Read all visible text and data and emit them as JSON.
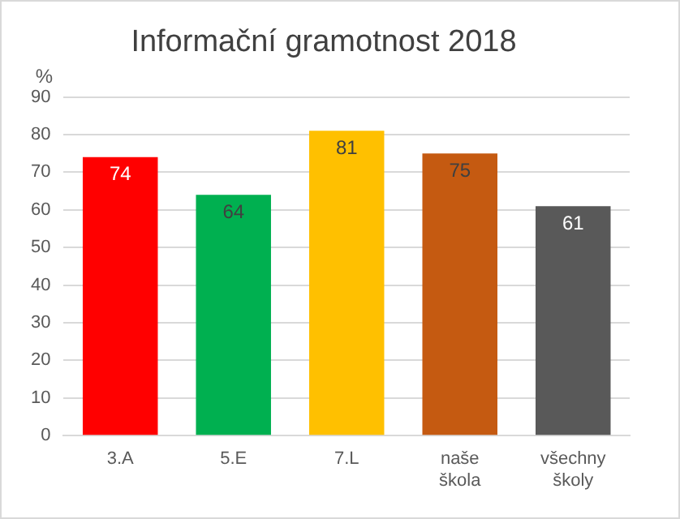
{
  "chart_data": {
    "type": "bar",
    "title": "Informační gramotnost 2018",
    "ylabel": "%",
    "categories": [
      "3.A",
      "5.E",
      "7.L",
      "naše škola",
      "všechny školy"
    ],
    "values": [
      74,
      64,
      81,
      75,
      61
    ],
    "colors": [
      "#ff0000",
      "#00b050",
      "#ffc000",
      "#c55a11",
      "#595959"
    ],
    "ylim": [
      0,
      90
    ],
    "yticks": [
      0,
      10,
      20,
      30,
      40,
      50,
      60,
      70,
      80,
      90
    ],
    "grid": "y",
    "data_labels": true,
    "legend": false
  }
}
